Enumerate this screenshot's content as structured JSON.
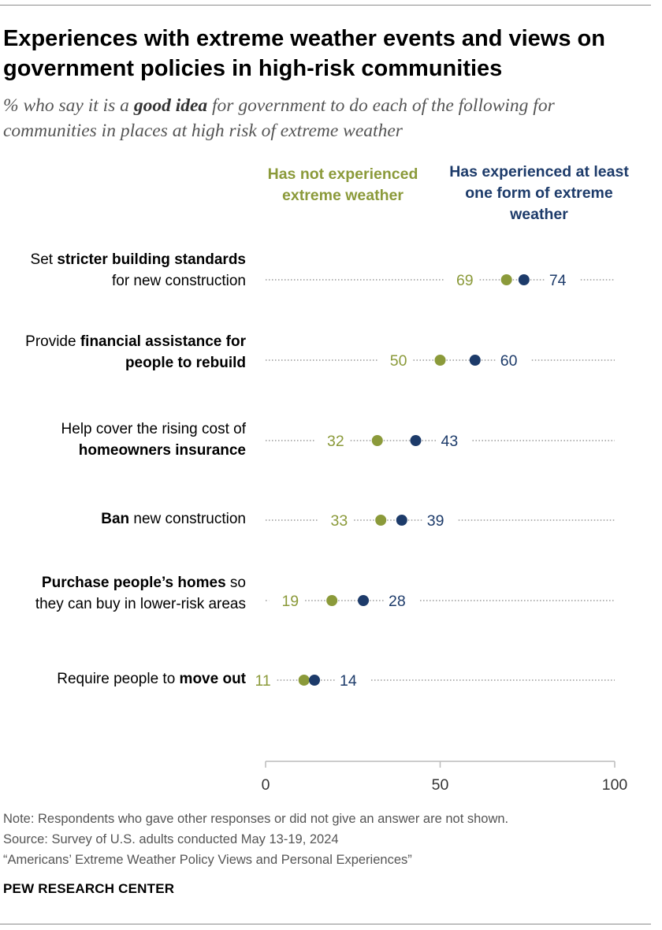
{
  "title": "Experiences with extreme weather events and views on government policies in high-risk communities",
  "subtitle": {
    "before": "% who say it is a ",
    "emphasis": "good idea",
    "after": " for government to do each of the following for communities in places at high risk of extreme weather"
  },
  "colors": {
    "not_experienced": "#8b9a3a",
    "experienced": "#1d3b6a",
    "dotted_line": "#999999",
    "axis": "#bbbbbb"
  },
  "chart_data": {
    "type": "scatter",
    "subtype": "dot-plot",
    "xlim": [
      0,
      100
    ],
    "x_ticks": [
      "0",
      "50",
      "100"
    ],
    "series": [
      {
        "name": "Has not experienced extreme weather",
        "key": "not_experienced"
      },
      {
        "name": "Has experienced at least one form of extreme weather",
        "key": "experienced"
      }
    ],
    "categories": [
      {
        "label_parts": [
          [
            "Set ",
            false
          ],
          [
            "stricter building standards",
            true
          ],
          [
            " for new construction",
            false
          ]
        ],
        "not_experienced": 69,
        "experienced": 74
      },
      {
        "label_parts": [
          [
            "Provide ",
            false
          ],
          [
            "financial assistance for people to rebuild",
            true
          ]
        ],
        "not_experienced": 50,
        "experienced": 60
      },
      {
        "label_parts": [
          [
            "Help cover the rising cost of ",
            false
          ],
          [
            "homeowners insurance",
            true
          ]
        ],
        "not_experienced": 32,
        "experienced": 43
      },
      {
        "label_parts": [
          [
            "Ban",
            true
          ],
          [
            " new construction",
            false
          ]
        ],
        "not_experienced": 33,
        "experienced": 39
      },
      {
        "label_parts": [
          [
            "Purchase people’s homes",
            true
          ],
          [
            " so they can buy in lower-risk areas",
            false
          ]
        ],
        "not_experienced": 19,
        "experienced": 28
      },
      {
        "label_parts": [
          [
            "Require people to ",
            false
          ],
          [
            "move out",
            true
          ]
        ],
        "not_experienced": 11,
        "experienced": 14
      }
    ]
  },
  "legend": {
    "not_experienced": "Has not experienced extreme weather",
    "experienced": "Has experienced at least one form of extreme weather"
  },
  "notes": [
    "Note: Respondents who gave other responses or did not give an answer are not shown.",
    "Source: Survey of U.S. adults conducted May 13-19, 2024",
    "“Americans’ Extreme Weather Policy Views and Personal Experiences”"
  ],
  "brand": "PEW RESEARCH CENTER"
}
